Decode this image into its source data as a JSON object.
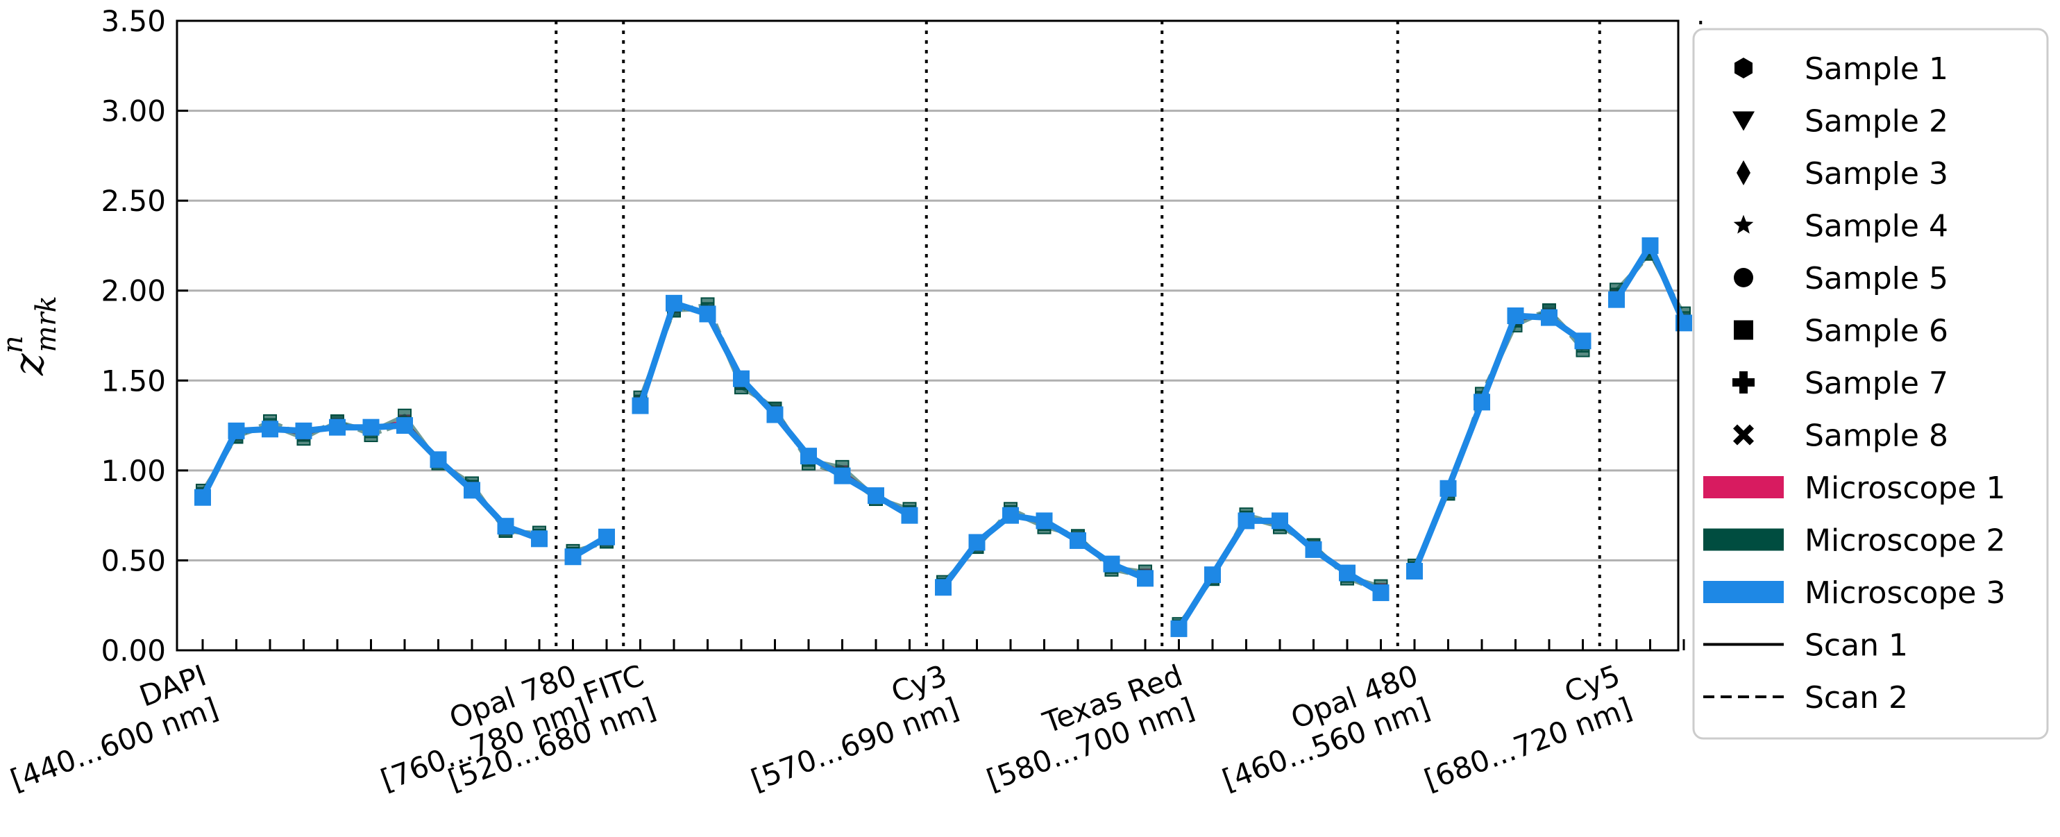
{
  "chart_data": {
    "type": "line",
    "ylabel": "z",
    "ylabel_sup": "n",
    "ylabel_sub": "mrk",
    "ylim": [
      0,
      3.5
    ],
    "yticks": [
      "0.00",
      "0.50",
      "1.00",
      "1.50",
      "2.00",
      "2.50",
      "3.00",
      "3.50"
    ],
    "grid": "horizontal",
    "legend_placement": "outside-right",
    "filters": [
      {
        "name": "DAPI",
        "range": "[440...600 nm]",
        "values": [
          0.85,
          1.22,
          1.23,
          1.22,
          1.24,
          1.24,
          1.25,
          1.06,
          0.89,
          0.69,
          0.62
        ]
      },
      {
        "name": "Opal 780",
        "range": "[760...780 nm]",
        "values": [
          0.52,
          0.63
        ]
      },
      {
        "name": "FITC",
        "range": "[520...680 nm]",
        "values": [
          1.36,
          1.93,
          1.87,
          1.51,
          1.31,
          1.08,
          0.97,
          0.86,
          0.75
        ]
      },
      {
        "name": "Cy3",
        "range": "[570...690 nm]",
        "values": [
          0.35,
          0.6,
          0.75,
          0.72,
          0.61,
          0.48,
          0.4
        ]
      },
      {
        "name": "Texas Red",
        "range": "[580...700 nm]",
        "values": [
          0.12,
          0.42,
          0.72,
          0.72,
          0.56,
          0.43,
          0.32
        ]
      },
      {
        "name": "Opal 480",
        "range": "[460...560 nm]",
        "values": [
          0.44,
          0.9,
          1.38,
          1.86,
          1.85,
          1.72
        ]
      },
      {
        "name": "Cy5",
        "range": "[680...720 nm]",
        "values": [
          1.95,
          2.25,
          1.82
        ]
      }
    ],
    "tick_labels": [
      {
        "line1": "DAPI",
        "line2": "[440...600 nm]"
      },
      {
        "line1": "Opal 780",
        "line2": "[760...780 nm]"
      },
      {
        "line1": "FITC",
        "line2": "[520...680 nm]"
      },
      {
        "line1": "Cy3",
        "line2": "[570...690 nm]"
      },
      {
        "line1": "Texas Red",
        "line2": "[580...700 nm]"
      },
      {
        "line1": "Opal 480",
        "line2": "[460...560 nm]"
      },
      {
        "line1": "Cy5",
        "line2": "[680...720 nm]"
      }
    ],
    "microscopes": [
      {
        "name": "Microscope 1",
        "color": "#d81b60"
      },
      {
        "name": "Microscope 2",
        "color": "#004d40"
      },
      {
        "name": "Microscope 3",
        "color": "#1e88e5"
      }
    ],
    "samples": [
      {
        "name": "Sample 1",
        "marker": "hexagon"
      },
      {
        "name": "Sample 2",
        "marker": "triangle-down"
      },
      {
        "name": "Sample 3",
        "marker": "thin-diamond"
      },
      {
        "name": "Sample 4",
        "marker": "star"
      },
      {
        "name": "Sample 5",
        "marker": "circle"
      },
      {
        "name": "Sample 6",
        "marker": "square"
      },
      {
        "name": "Sample 7",
        "marker": "plus-filled"
      },
      {
        "name": "Sample 8",
        "marker": "x-filled"
      }
    ],
    "scans": [
      {
        "name": "Scan 1",
        "linestyle": "solid"
      },
      {
        "name": "Scan 2",
        "linestyle": "dashed"
      }
    ]
  }
}
